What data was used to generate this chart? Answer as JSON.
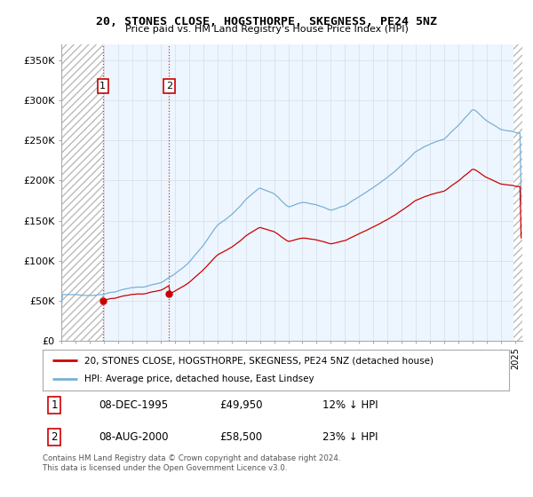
{
  "title": "20, STONES CLOSE, HOGSTHORPE, SKEGNESS, PE24 5NZ",
  "subtitle": "Price paid vs. HM Land Registry's House Price Index (HPI)",
  "ylabel_ticks": [
    "£0",
    "£50K",
    "£100K",
    "£150K",
    "£200K",
    "£250K",
    "£300K",
    "£350K"
  ],
  "ylim_max": 370000,
  "xlim_start": 1993.0,
  "xlim_end": 2025.5,
  "transaction1_date": 1995.93,
  "transaction1_price": 49950,
  "transaction2_date": 2000.6,
  "transaction2_price": 58500,
  "legend_label1": "20, STONES CLOSE, HOGSTHORPE, SKEGNESS, PE24 5NZ (detached house)",
  "legend_label2": "HPI: Average price, detached house, East Lindsey",
  "note1_num": "1",
  "note1_date": "08-DEC-1995",
  "note1_price": "£49,950",
  "note1_hpi": "12% ↓ HPI",
  "note2_num": "2",
  "note2_date": "08-AUG-2000",
  "note2_price": "£58,500",
  "note2_hpi": "23% ↓ HPI",
  "footer": "Contains HM Land Registry data © Crown copyright and database right 2024.\nThis data is licensed under the Open Government Licence v3.0.",
  "red_color": "#cc0000",
  "blue_color": "#7ab0d4",
  "blue_fill_color": "#ddeeff",
  "hatch_color": "#bbbbbb",
  "background_color": "#ffffff",
  "grid_color": "#cccccc",
  "hpi_years": [
    1993,
    1994,
    1995,
    1996,
    1997,
    1998,
    1999,
    2000,
    2001,
    2002,
    2003,
    2004,
    2005,
    2006,
    2007,
    2008,
    2009,
    2010,
    2011,
    2012,
    2013,
    2014,
    2015,
    2016,
    2017,
    2018,
    2019,
    2020,
    2021,
    2022,
    2023,
    2024,
    2025
  ],
  "hpi_prices": [
    57000,
    57500,
    56000,
    59000,
    63000,
    67000,
    69000,
    73000,
    83000,
    97000,
    118000,
    143000,
    158000,
    178000,
    192000,
    185000,
    168000,
    175000,
    172000,
    165000,
    170000,
    182000,
    193000,
    205000,
    222000,
    238000,
    248000,
    254000,
    272000,
    293000,
    278000,
    268000,
    265000
  ]
}
